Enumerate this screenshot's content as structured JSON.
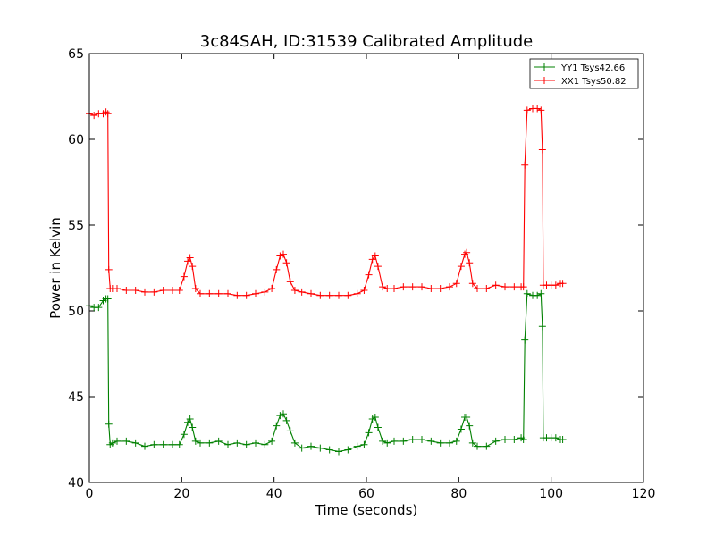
{
  "chart_data": {
    "type": "line",
    "title": "3c84SAH, ID:31539 Calibrated Amplitude",
    "xlabel": "Time (seconds)",
    "ylabel": "Power in Kelvin",
    "xlim": [
      0,
      120
    ],
    "ylim": [
      40,
      65
    ],
    "xticks": [
      0,
      20,
      40,
      60,
      80,
      100,
      120
    ],
    "yticks": [
      40,
      45,
      50,
      55,
      60,
      65
    ],
    "grid": false,
    "legend_position": "top-right",
    "series": [
      {
        "name": "YY1 Tsys42.66",
        "color": "#008000",
        "x": [
          0,
          1,
          2,
          3,
          3.6,
          4,
          4.2,
          4.5,
          5,
          6,
          8,
          10,
          12,
          14,
          16,
          18,
          19.5,
          20.5,
          21.3,
          21.8,
          22.3,
          23,
          24,
          26,
          28,
          30,
          32,
          34,
          36,
          38,
          39.5,
          40.5,
          41.3,
          42,
          42.7,
          43.5,
          44.5,
          46,
          48,
          50,
          52,
          54,
          56,
          58,
          59.5,
          60.5,
          61.3,
          61.9,
          62.5,
          63.5,
          64.5,
          66,
          68,
          70,
          72,
          74,
          76,
          78,
          79.5,
          80.5,
          81.3,
          81.7,
          82.3,
          83,
          84,
          86,
          88,
          90,
          92,
          93.5,
          94,
          94.3,
          94.8,
          96,
          97,
          97.8,
          98.1,
          98.3,
          99,
          100,
          101,
          102,
          102.5
        ],
        "y": [
          50.3,
          50.2,
          50.2,
          50.6,
          50.7,
          50.7,
          43.4,
          42.2,
          42.3,
          42.4,
          42.4,
          42.3,
          42.1,
          42.2,
          42.2,
          42.2,
          42.2,
          42.8,
          43.5,
          43.7,
          43.2,
          42.4,
          42.3,
          42.3,
          42.4,
          42.2,
          42.3,
          42.2,
          42.3,
          42.2,
          42.4,
          43.3,
          43.9,
          44.0,
          43.6,
          43.0,
          42.3,
          42.0,
          42.1,
          42.0,
          41.9,
          41.8,
          41.9,
          42.1,
          42.2,
          42.9,
          43.7,
          43.8,
          43.2,
          42.4,
          42.3,
          42.4,
          42.4,
          42.5,
          42.5,
          42.4,
          42.3,
          42.3,
          42.4,
          43.1,
          43.8,
          43.8,
          43.3,
          42.3,
          42.1,
          42.1,
          42.4,
          42.5,
          42.5,
          42.6,
          42.5,
          48.3,
          51.0,
          50.9,
          50.9,
          51.0,
          49.1,
          42.6,
          42.6,
          42.6,
          42.6,
          42.5,
          42.5
        ]
      },
      {
        "name": "XX1 Tsys50.82",
        "color": "#ff0000",
        "x": [
          0,
          1,
          2,
          3,
          3.6,
          4,
          4.2,
          4.5,
          5,
          6,
          8,
          10,
          12,
          14,
          16,
          18,
          19.5,
          20.5,
          21.3,
          21.8,
          22.3,
          23,
          24,
          26,
          28,
          30,
          32,
          34,
          36,
          38,
          39.5,
          40.5,
          41.3,
          42,
          42.7,
          43.5,
          44.5,
          46,
          48,
          50,
          52,
          54,
          56,
          58,
          59.5,
          60.5,
          61.3,
          61.9,
          62.5,
          63.5,
          64.5,
          66,
          68,
          70,
          72,
          74,
          76,
          78,
          79.5,
          80.5,
          81.3,
          81.7,
          82.3,
          83,
          84,
          86,
          88,
          90,
          92,
          93.5,
          94,
          94.3,
          94.8,
          96,
          97,
          97.8,
          98.1,
          98.3,
          99,
          100,
          101,
          102,
          102.5
        ],
        "y": [
          61.5,
          61.4,
          61.5,
          61.5,
          61.6,
          61.5,
          52.4,
          51.3,
          51.3,
          51.3,
          51.2,
          51.2,
          51.1,
          51.1,
          51.2,
          51.2,
          51.2,
          52.0,
          52.9,
          53.1,
          52.6,
          51.3,
          51.0,
          51.0,
          51.0,
          51.0,
          50.9,
          50.9,
          51.0,
          51.1,
          51.3,
          52.4,
          53.2,
          53.3,
          52.8,
          51.7,
          51.2,
          51.1,
          51.0,
          50.9,
          50.9,
          50.9,
          50.9,
          51.0,
          51.2,
          52.1,
          53.0,
          53.2,
          52.6,
          51.4,
          51.3,
          51.3,
          51.4,
          51.4,
          51.4,
          51.3,
          51.3,
          51.4,
          51.6,
          52.6,
          53.3,
          53.4,
          52.8,
          51.6,
          51.3,
          51.3,
          51.5,
          51.4,
          51.4,
          51.4,
          51.4,
          58.5,
          61.7,
          61.8,
          61.8,
          61.7,
          59.4,
          51.5,
          51.5,
          51.5,
          51.5,
          51.6,
          51.6
        ]
      }
    ]
  }
}
